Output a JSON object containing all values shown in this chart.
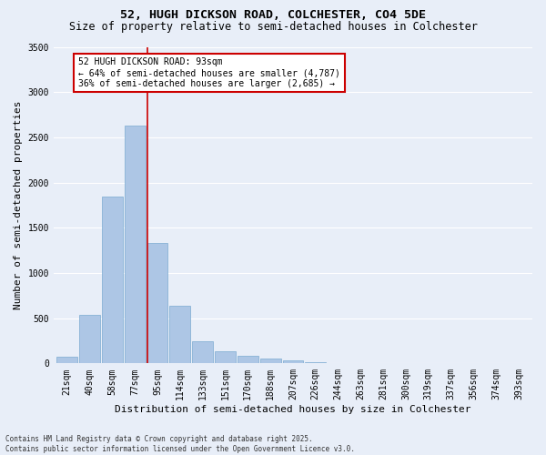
{
  "title_line1": "52, HUGH DICKSON ROAD, COLCHESTER, CO4 5DE",
  "title_line2": "Size of property relative to semi-detached houses in Colchester",
  "xlabel": "Distribution of semi-detached houses by size in Colchester",
  "ylabel": "Number of semi-detached properties",
  "footnote": "Contains HM Land Registry data © Crown copyright and database right 2025.\nContains public sector information licensed under the Open Government Licence v3.0.",
  "categories": [
    "21sqm",
    "40sqm",
    "58sqm",
    "77sqm",
    "95sqm",
    "114sqm",
    "133sqm",
    "151sqm",
    "170sqm",
    "188sqm",
    "207sqm",
    "226sqm",
    "244sqm",
    "263sqm",
    "281sqm",
    "300sqm",
    "319sqm",
    "337sqm",
    "356sqm",
    "374sqm",
    "393sqm"
  ],
  "values": [
    75,
    540,
    1840,
    2630,
    1330,
    640,
    240,
    130,
    80,
    50,
    30,
    15,
    8,
    0,
    0,
    0,
    0,
    0,
    0,
    0,
    0
  ],
  "bar_color": "#adc6e5",
  "bar_edge_color": "#7aaad0",
  "highlight_line_color": "#cc0000",
  "annotation_title": "52 HUGH DICKSON ROAD: 93sqm",
  "annotation_line1": "← 64% of semi-detached houses are smaller (4,787)",
  "annotation_line2": "36% of semi-detached houses are larger (2,685) →",
  "annotation_box_color": "#cc0000",
  "ylim": [
    0,
    3500
  ],
  "yticks": [
    0,
    500,
    1000,
    1500,
    2000,
    2500,
    3000,
    3500
  ],
  "background_color": "#e8eef8",
  "grid_color": "#ffffff",
  "title_fontsize": 9.5,
  "subtitle_fontsize": 8.5,
  "axis_label_fontsize": 8,
  "tick_fontsize": 7,
  "annotation_fontsize": 7,
  "footnote_fontsize": 5.5
}
